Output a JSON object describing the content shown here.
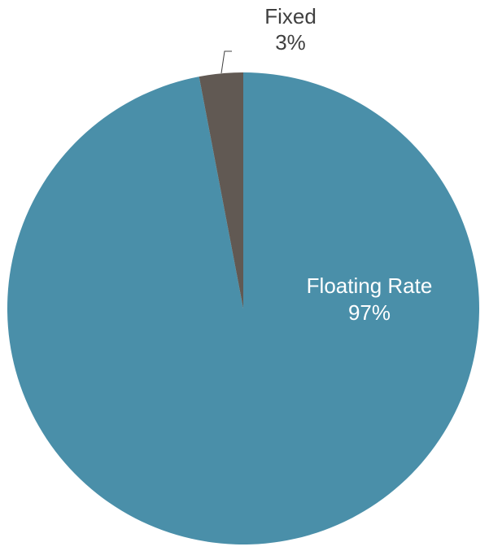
{
  "chart_data": {
    "type": "pie",
    "categories": [
      "Floating Rate",
      "Fixed"
    ],
    "values": [
      97,
      3
    ],
    "value_labels": [
      "97%",
      "3%"
    ],
    "colors": [
      "#4a8fa9",
      "#615953"
    ]
  }
}
